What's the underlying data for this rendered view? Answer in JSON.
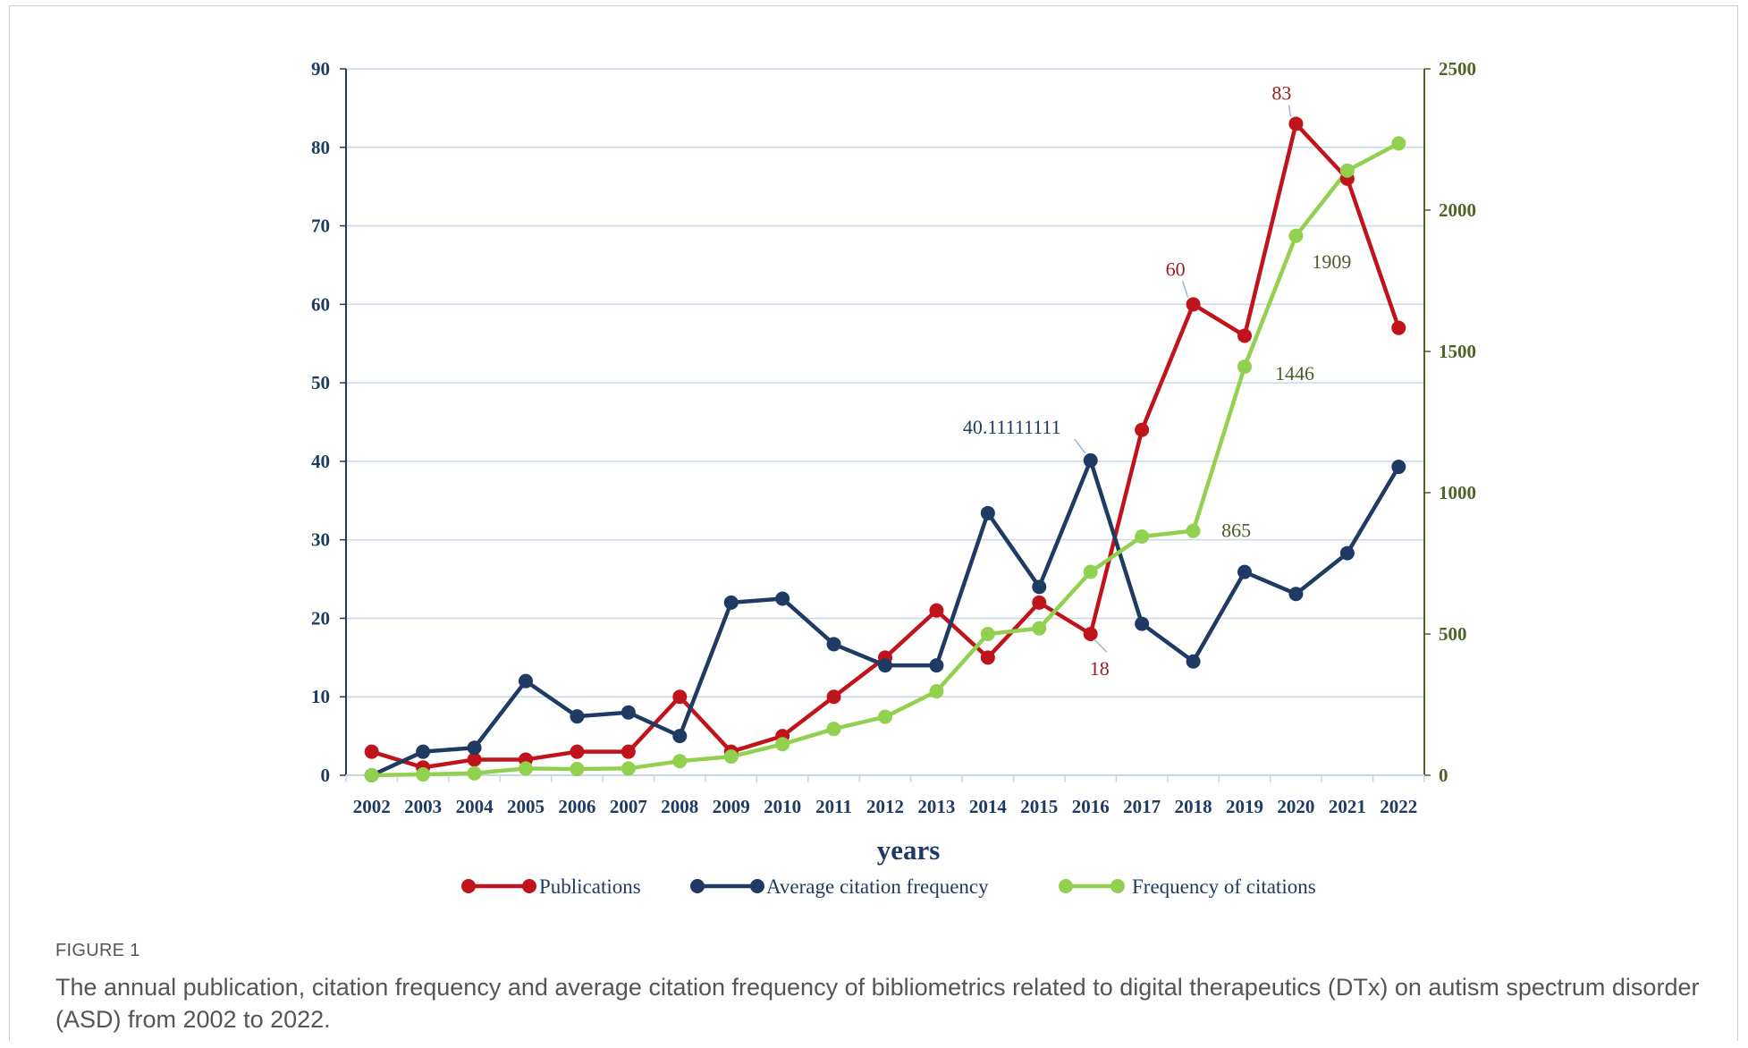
{
  "figure": {
    "label": "FIGURE 1",
    "caption": "The annual publication, citation frequency and average citation frequency of bibliometrics related to digital therapeutics (DTx) on autism spectrum disorder (ASD) from 2002 to 2022."
  },
  "chart_data": {
    "type": "line",
    "title": "",
    "xlabel": "years",
    "ylabel": "",
    "y2label": "",
    "categories": [
      "2002",
      "2003",
      "2004",
      "2005",
      "2006",
      "2007",
      "2008",
      "2009",
      "2010",
      "2011",
      "2012",
      "2013",
      "2014",
      "2015",
      "2016",
      "2017",
      "2018",
      "2019",
      "2020",
      "2021",
      "2022"
    ],
    "ylim": [
      0,
      90
    ],
    "y_ticks": [
      0,
      10,
      20,
      30,
      40,
      50,
      60,
      70,
      80,
      90
    ],
    "y2lim": [
      0,
      2500
    ],
    "y2_ticks": [
      0,
      500,
      1000,
      1500,
      2000,
      2500
    ],
    "grid": "horizontal",
    "legend_position": "bottom",
    "series": [
      {
        "name": "Publications",
        "axis": "left",
        "color": "#c0141c",
        "values": [
          3,
          1,
          2,
          2,
          3,
          3,
          10,
          3,
          5,
          10,
          15,
          21,
          15,
          22,
          18,
          44,
          60,
          56,
          83,
          76,
          57
        ]
      },
      {
        "name": "Average citation frequency",
        "axis": "left",
        "color": "#1f3b63",
        "values": [
          0,
          3,
          3.5,
          12,
          7.5,
          8,
          5,
          22,
          22.5,
          16.7,
          14,
          14,
          33.4,
          24,
          40.11,
          19.3,
          14.5,
          25.9,
          23.1,
          28.3,
          39.3
        ]
      },
      {
        "name": "Frequency of citations",
        "axis": "right",
        "color": "#92d050",
        "values": [
          0,
          3,
          7,
          24,
          22,
          24,
          50,
          66,
          110,
          164,
          207,
          297,
          500,
          520,
          720,
          845,
          865,
          1446,
          1909,
          2140,
          2236
        ]
      }
    ],
    "annotations": [
      {
        "text": "83",
        "series": "Publications",
        "category": "2020",
        "color": "#9b1c23"
      },
      {
        "text": "60",
        "series": "Publications",
        "category": "2018",
        "color": "#9b1c23"
      },
      {
        "text": "18",
        "series": "Publications",
        "category": "2016",
        "color": "#9b1c23"
      },
      {
        "text": "40.11111111",
        "series": "Average citation frequency",
        "category": "2016",
        "color": "#1f3b63"
      },
      {
        "text": "1909",
        "series": "Frequency of citations",
        "category": "2020",
        "color": "#4f5a2a"
      },
      {
        "text": "1446",
        "series": "Frequency of citations",
        "category": "2019",
        "color": "#4f5a2a"
      },
      {
        "text": "865",
        "series": "Frequency of citations",
        "category": "2018",
        "color": "#4f5a2a"
      }
    ],
    "colors": {
      "left_axis": "#1f3b63",
      "right_axis": "#4f6228",
      "grid": "#c9d6e8"
    }
  }
}
